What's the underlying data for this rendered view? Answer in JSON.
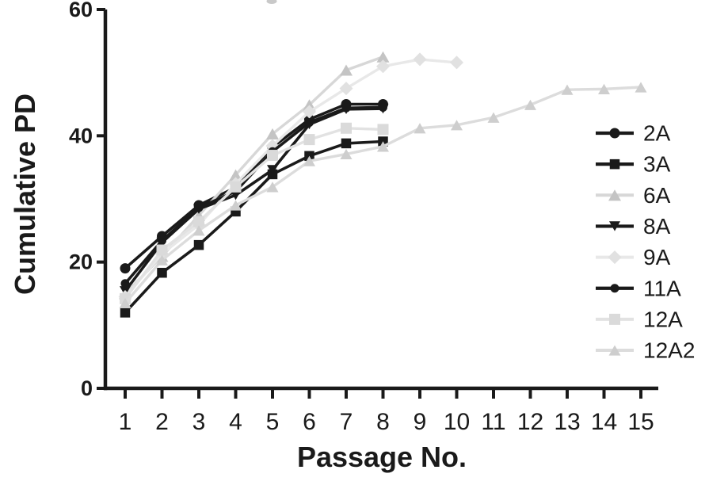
{
  "chart_data": {
    "type": "line",
    "title": "",
    "xlabel": "Passage No.",
    "ylabel": "Cumulative PD",
    "x_ticks": [
      1,
      2,
      3,
      4,
      5,
      6,
      7,
      8,
      9,
      10,
      11,
      12,
      13,
      14,
      15
    ],
    "y_ticks": [
      0,
      20,
      40,
      60
    ],
    "xlim": [
      0.45,
      15.5
    ],
    "ylim": [
      0,
      60
    ],
    "grid": false,
    "legend_position": "right-inside",
    "axis_color": "#1a1a1a",
    "series": [
      {
        "name": "2A",
        "marker": "circle",
        "color": "#1a1a1a",
        "line_color": "#1a1a1a",
        "marker_size": 13,
        "line_width": 3.6,
        "x": [
          1,
          2,
          3,
          4,
          5,
          6,
          7,
          8
        ],
        "values": [
          19,
          24.1,
          29,
          31.8,
          38.2,
          42.6,
          45,
          45
        ]
      },
      {
        "name": "3A",
        "marker": "square",
        "color": "#1a1a1a",
        "line_color": "#1a1a1a",
        "marker_size": 12.5,
        "line_width": 3.6,
        "x": [
          1,
          2,
          3,
          4,
          5,
          6,
          7,
          8
        ],
        "values": [
          12,
          18.3,
          22.7,
          28,
          33.9,
          36.8,
          38.8,
          39.1
        ]
      },
      {
        "name": "6A",
        "marker": "triangle-up",
        "color": "#c4c4c4",
        "line_color": "#d7d7d7",
        "marker_size": 16,
        "line_width": 3.4,
        "x": [
          1,
          2,
          3,
          4,
          5,
          6,
          7,
          8
        ],
        "values": [
          15,
          20.9,
          27.4,
          33.8,
          40.3,
          44.9,
          50.4,
          52.5
        ]
      },
      {
        "name": "8A",
        "marker": "triangle-down",
        "color": "#1a1a1a",
        "line_color": "#1a1a1a",
        "marker_size": 14,
        "line_width": 3.6,
        "x": [
          1,
          2,
          3,
          4,
          5,
          6,
          7,
          8
        ],
        "values": [
          15.4,
          23.1,
          28.4,
          30.6,
          34.6,
          41.8,
          44.2,
          44.3
        ]
      },
      {
        "name": "9A",
        "marker": "diamond",
        "color": "#e1e1e1",
        "line_color": "#e8e8e8",
        "marker_size": 17,
        "line_width": 3.4,
        "x": [
          1,
          2,
          3,
          4,
          5,
          6,
          7,
          8,
          9,
          10
        ],
        "values": [
          14.5,
          21.3,
          25.9,
          32.4,
          38.4,
          43.8,
          47.5,
          51,
          52.1,
          51.6
        ]
      },
      {
        "name": "11A",
        "marker": "circle",
        "color": "#1a1a1a",
        "line_color": "#1a1a1a",
        "marker_size": 11,
        "line_width": 3.6,
        "x": [
          1,
          2,
          3,
          4,
          5,
          6,
          7,
          8
        ],
        "values": [
          16.6,
          23.4,
          28.6,
          31.2,
          37.5,
          42.1,
          44.4,
          44.5
        ]
      },
      {
        "name": "12A",
        "marker": "square",
        "color": "#dadada",
        "line_color": "#e2e2e2",
        "marker_size": 14,
        "line_width": 3.4,
        "x": [
          1,
          2,
          3,
          4,
          5,
          6,
          7,
          8
        ],
        "values": [
          14.2,
          21.9,
          26.4,
          31.9,
          36.9,
          39.4,
          41.2,
          41
        ]
      },
      {
        "name": "12A2",
        "marker": "triangle-up",
        "color": "#cecece",
        "line_color": "#dcdcdc",
        "marker_size": 15,
        "line_width": 3.4,
        "x": [
          1,
          2,
          3,
          4,
          5,
          6,
          7,
          8,
          9,
          10,
          11,
          12,
          13,
          14,
          15
        ],
        "values": [
          13.5,
          20.3,
          25,
          29,
          31.9,
          36,
          37.1,
          38.3,
          41.2,
          41.7,
          42.9,
          44.9,
          47.3,
          47.4,
          47.7
        ]
      }
    ]
  }
}
